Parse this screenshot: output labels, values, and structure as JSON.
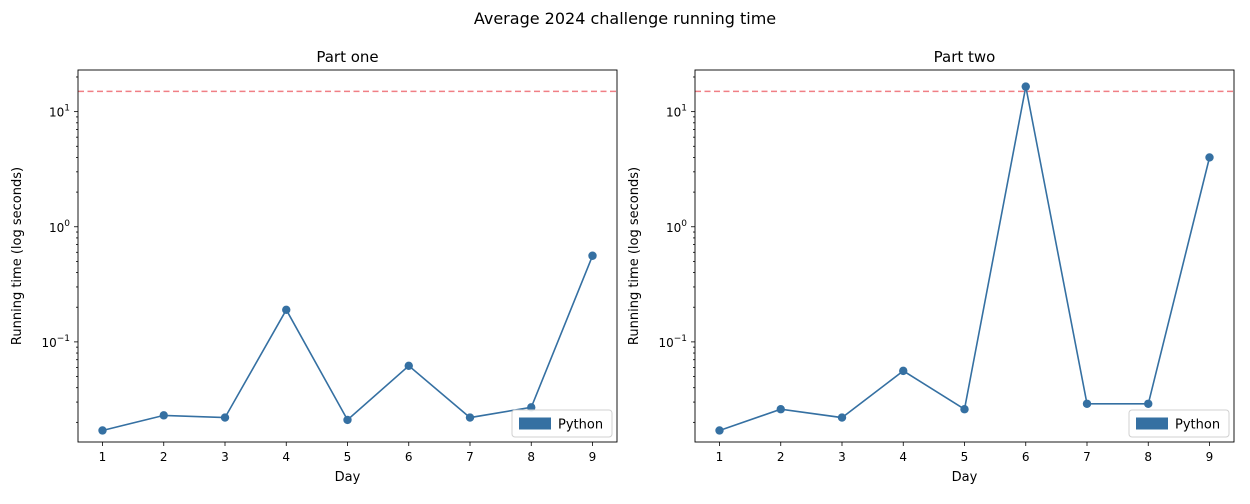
{
  "figure": {
    "title": "Average 2024 challenge running time"
  },
  "chart_data": [
    {
      "type": "line",
      "title": "Part one",
      "xlabel": "Day",
      "ylabel": "Running time (log seconds)",
      "yscale": "log",
      "ylim": [
        0.0135,
        23
      ],
      "x": [
        1,
        2,
        3,
        4,
        5,
        6,
        7,
        8,
        9
      ],
      "x_ticks": [
        "1",
        "2",
        "3",
        "4",
        "5",
        "6",
        "7",
        "8",
        "9"
      ],
      "y_ticks": [
        {
          "value": 0.1,
          "base": "10",
          "exp": "−1"
        },
        {
          "value": 1,
          "base": "10",
          "exp": "0"
        },
        {
          "value": 10,
          "base": "10",
          "exp": "1"
        }
      ],
      "series": [
        {
          "name": "Python",
          "values": [
            0.017,
            0.023,
            0.022,
            0.19,
            0.021,
            0.062,
            0.022,
            0.027,
            0.56
          ]
        }
      ],
      "reference_line": {
        "value": 15,
        "style": "dashed"
      },
      "legend": {
        "placement": "lower-right"
      },
      "grid": false,
      "colors": {
        "line": "#3570a2",
        "reference": "#f07f85"
      }
    },
    {
      "type": "line",
      "title": "Part two",
      "xlabel": "Day",
      "ylabel": "Running time (log seconds)",
      "yscale": "log",
      "ylim": [
        0.0135,
        23
      ],
      "x": [
        1,
        2,
        3,
        4,
        5,
        6,
        7,
        8,
        9
      ],
      "x_ticks": [
        "1",
        "2",
        "3",
        "4",
        "5",
        "6",
        "7",
        "8",
        "9"
      ],
      "y_ticks": [
        {
          "value": 0.1,
          "base": "10",
          "exp": "−1"
        },
        {
          "value": 1,
          "base": "10",
          "exp": "0"
        },
        {
          "value": 10,
          "base": "10",
          "exp": "1"
        }
      ],
      "series": [
        {
          "name": "Python",
          "values": [
            0.017,
            0.026,
            0.022,
            0.056,
            0.026,
            16.5,
            0.029,
            0.029,
            4.0
          ]
        }
      ],
      "reference_line": {
        "value": 15,
        "style": "dashed"
      },
      "legend": {
        "placement": "lower-right"
      },
      "grid": false,
      "colors": {
        "line": "#3570a2",
        "reference": "#f07f85"
      }
    }
  ]
}
